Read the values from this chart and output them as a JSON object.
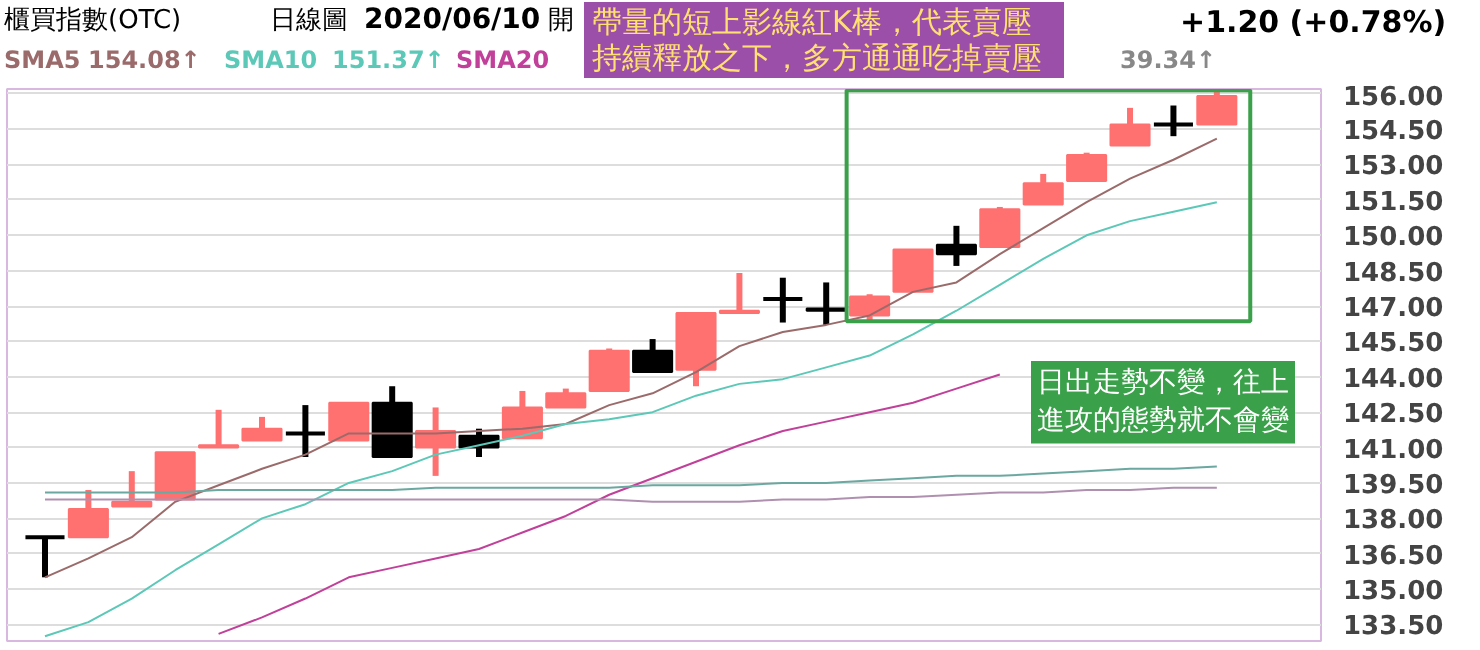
{
  "chart_data": {
    "type": "candlestick",
    "title": "櫃買指數(OTC)",
    "subtitle": "日線圖",
    "categories": [
      null,
      null,
      null,
      null,
      null,
      null,
      null,
      null,
      null,
      null,
      null,
      null,
      null,
      null,
      null,
      null,
      null,
      null,
      null,
      null,
      null,
      null,
      null,
      null,
      null,
      null,
      null,
      null
    ],
    "ohlc": [
      [
        137.2,
        137.2,
        135.5,
        137.2
      ],
      [
        137.2,
        139.2,
        137.2,
        138.4
      ],
      [
        138.5,
        140.0,
        138.5,
        138.7
      ],
      [
        138.8,
        140.8,
        138.8,
        140.8
      ],
      [
        141.0,
        142.6,
        141.0,
        141.1
      ],
      [
        141.3,
        142.3,
        141.3,
        141.8
      ],
      [
        141.6,
        142.8,
        140.6,
        141.6
      ],
      [
        141.3,
        142.9,
        141.3,
        142.9
      ],
      [
        142.9,
        143.6,
        140.6,
        140.6
      ],
      [
        141.0,
        142.7,
        139.8,
        141.7
      ],
      [
        141.5,
        141.8,
        140.6,
        141.0
      ],
      [
        141.4,
        143.4,
        141.4,
        142.7
      ],
      [
        142.7,
        143.5,
        142.7,
        143.3
      ],
      [
        143.4,
        145.2,
        143.4,
        145.1
      ],
      [
        145.1,
        145.6,
        144.2,
        144.2
      ],
      [
        144.3,
        146.7,
        143.6,
        146.7
      ],
      [
        146.7,
        148.4,
        146.7,
        146.8
      ],
      [
        147.3,
        148.2,
        146.3,
        147.3
      ],
      [
        146.9,
        148.0,
        146.2,
        146.8
      ],
      [
        146.6,
        147.5,
        146.4,
        147.4
      ],
      [
        147.6,
        149.4,
        147.6,
        149.4
      ],
      [
        149.6,
        150.4,
        148.7,
        149.2
      ],
      [
        149.5,
        151.2,
        149.5,
        151.1
      ],
      [
        151.3,
        152.6,
        151.3,
        152.2
      ],
      [
        152.3,
        153.5,
        152.3,
        153.4
      ],
      [
        153.8,
        155.4,
        153.8,
        154.7
      ],
      [
        154.7,
        155.5,
        154.2,
        154.7
      ],
      [
        154.7,
        156.1,
        154.7,
        155.9
      ]
    ],
    "colors": [
      "#000000",
      "#ff7070",
      "#ff7070",
      "#ff7070",
      "#ff7070",
      "#ff7070",
      "#000000",
      "#ff7070",
      "#000000",
      "#ff7070",
      "#000000",
      "#ff7070",
      "#ff7070",
      "#ff7070",
      "#000000",
      "#ff7070",
      "#ff7070",
      "#000000",
      "#000000",
      "#ff7070",
      "#ff7070",
      "#000000",
      "#ff7070",
      "#ff7070",
      "#ff7070",
      "#ff7070",
      "#000000",
      "#ff7070"
    ],
    "series": [
      {
        "type": "line",
        "name": "SMA5",
        "color": "#9b6b6b",
        "values": [
          135.5,
          136.3,
          137.2,
          138.7,
          139.4,
          140.1,
          140.7,
          141.6,
          141.6,
          141.6,
          141.7,
          141.8,
          142.0,
          142.8,
          143.3,
          144.2,
          145.3,
          145.9,
          146.2,
          146.6,
          147.6,
          148.0,
          149.2,
          150.3,
          151.4,
          152.4,
          153.2,
          154.1
        ]
      },
      {
        "type": "line",
        "name": "SMA10",
        "color": "#5cc8b8",
        "values": [
          133.0,
          133.6,
          134.6,
          135.8,
          136.9,
          138.0,
          138.6,
          139.5,
          140.0,
          140.7,
          141.1,
          141.5,
          142.0,
          142.2,
          142.5,
          143.2,
          143.7,
          143.9,
          144.4,
          144.9,
          145.8,
          146.8,
          147.9,
          149.0,
          150.0,
          150.6,
          151.0,
          151.4
        ]
      },
      {
        "type": "line",
        "name": "SMA20",
        "color": "#c0409a",
        "values": [
          null,
          null,
          null,
          null,
          133.1,
          133.8,
          134.6,
          135.5,
          135.9,
          136.3,
          136.7,
          137.4,
          138.1,
          139.0,
          139.7,
          140.4,
          141.1,
          141.7,
          142.1,
          142.5,
          142.9,
          143.5,
          144.1,
          null,
          null,
          null,
          null,
          null
        ]
      },
      {
        "type": "line",
        "color": "#6aa8a0",
        "values": [
          139.1,
          139.1,
          139.1,
          139.1,
          139.2,
          139.2,
          139.2,
          139.2,
          139.2,
          139.3,
          139.3,
          139.3,
          139.3,
          139.3,
          139.4,
          139.4,
          139.4,
          139.5,
          139.5,
          139.6,
          139.7,
          139.8,
          139.8,
          139.9,
          140.0,
          140.1,
          140.1,
          140.2
        ]
      },
      {
        "type": "line",
        "color": "#b090b0",
        "values": [
          138.8,
          138.8,
          138.8,
          138.8,
          138.8,
          138.8,
          138.8,
          138.8,
          138.8,
          138.8,
          138.8,
          138.8,
          138.8,
          138.8,
          138.7,
          138.7,
          138.7,
          138.8,
          138.8,
          138.9,
          138.9,
          139.0,
          139.1,
          139.1,
          139.2,
          139.2,
          139.3,
          139.3
        ]
      }
    ],
    "ylim": [
      132.8,
      156.2
    ],
    "yticks": [
      {
        "value": 133.5,
        "label": "133.50"
      },
      {
        "value": 135,
        "label": "135.00"
      },
      {
        "value": 136.5,
        "label": "136.50"
      },
      {
        "value": 138,
        "label": "138.00"
      },
      {
        "value": 139.5,
        "label": "139.50"
      },
      {
        "value": 141,
        "label": "141.00"
      },
      {
        "value": 142.5,
        "label": "142.50"
      },
      {
        "value": 144,
        "label": "144.00"
      },
      {
        "value": 145.5,
        "label": "145.50"
      },
      {
        "value": 147,
        "label": "147.00"
      },
      {
        "value": 148.5,
        "label": "148.50"
      },
      {
        "value": 150,
        "label": "150.00"
      },
      {
        "value": 151.5,
        "label": "151.50"
      },
      {
        "value": 153,
        "label": "153.00"
      },
      {
        "value": 154.5,
        "label": "154.50"
      },
      {
        "value": 156,
        "label": "156.00"
      }
    ],
    "grid": "y",
    "annotations": [
      "2020/06/10",
      "開",
      "+1.20 (+0.78%)",
      "154.08↑",
      "151.37↑",
      "39.34↑",
      "帶量的短上影線紅K棒，代表賣壓持續釋放之下，多方通通吃掉賣壓",
      "日出走勢不變，往上進攻的態勢就不會變"
    ]
  }
}
